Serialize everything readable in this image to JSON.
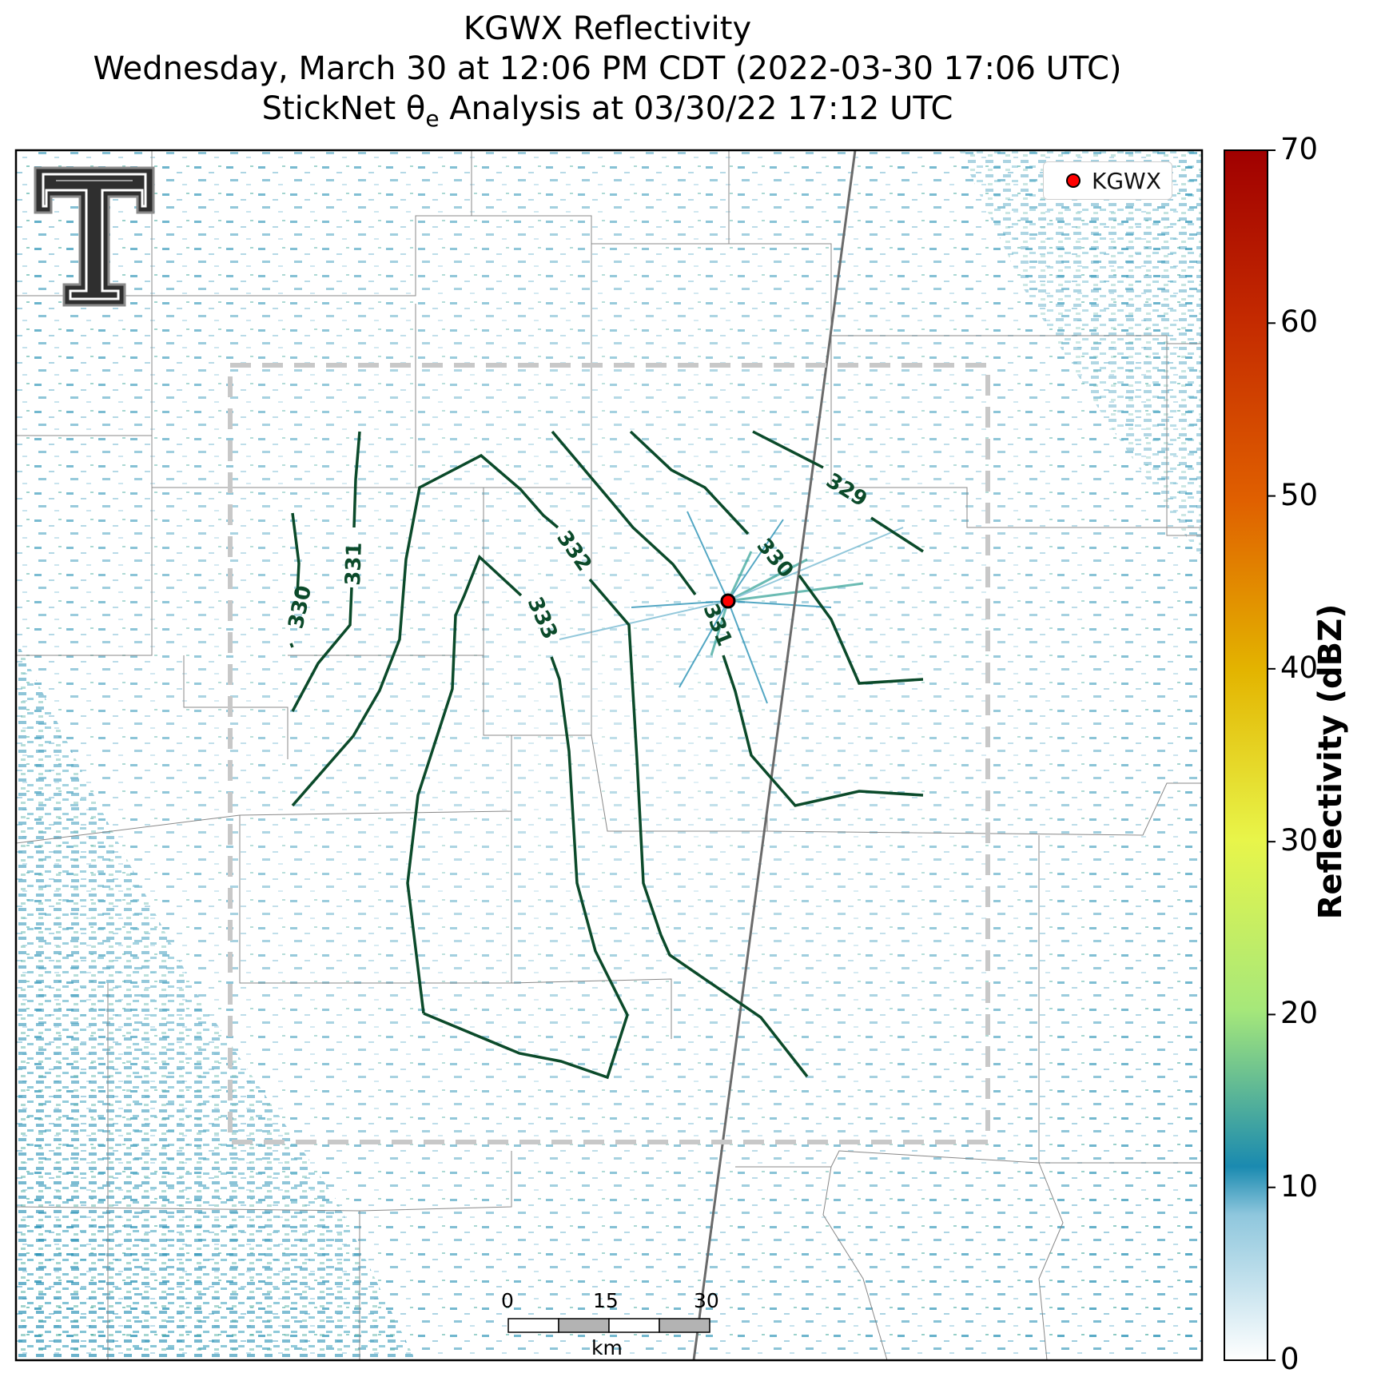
{
  "title": {
    "line1": "KGWX Reflectivity",
    "line2": "Wednesday, March 30 at 12:06 PM CDT (2022-03-30 17:06 UTC)",
    "line3": "StickNet θe Analysis at 03/30/22 17:12 UTC"
  },
  "legend": {
    "label": "KGWX",
    "marker_color": "#ff0000"
  },
  "scale_bar": {
    "labels": [
      "0",
      "15",
      "30"
    ],
    "unit": "km"
  },
  "colorbar": {
    "title": "Reflectivity (dBZ)",
    "ticks": [
      "0",
      "10",
      "20",
      "30",
      "40",
      "50",
      "60",
      "70"
    ],
    "min": 0,
    "max": 70,
    "colors": [
      "#ffffff",
      "#1a8ab0",
      "#a6e87a",
      "#e8f54a",
      "#e3b400",
      "#e06000",
      "#b00000"
    ]
  },
  "contours": {
    "color": "#0b4a2a",
    "labels": [
      "330",
      "331",
      "332",
      "333",
      "331",
      "330",
      "329"
    ]
  },
  "logo": {
    "name": "texas-tech-double-t-logo",
    "color": "#2f2f2f"
  }
}
